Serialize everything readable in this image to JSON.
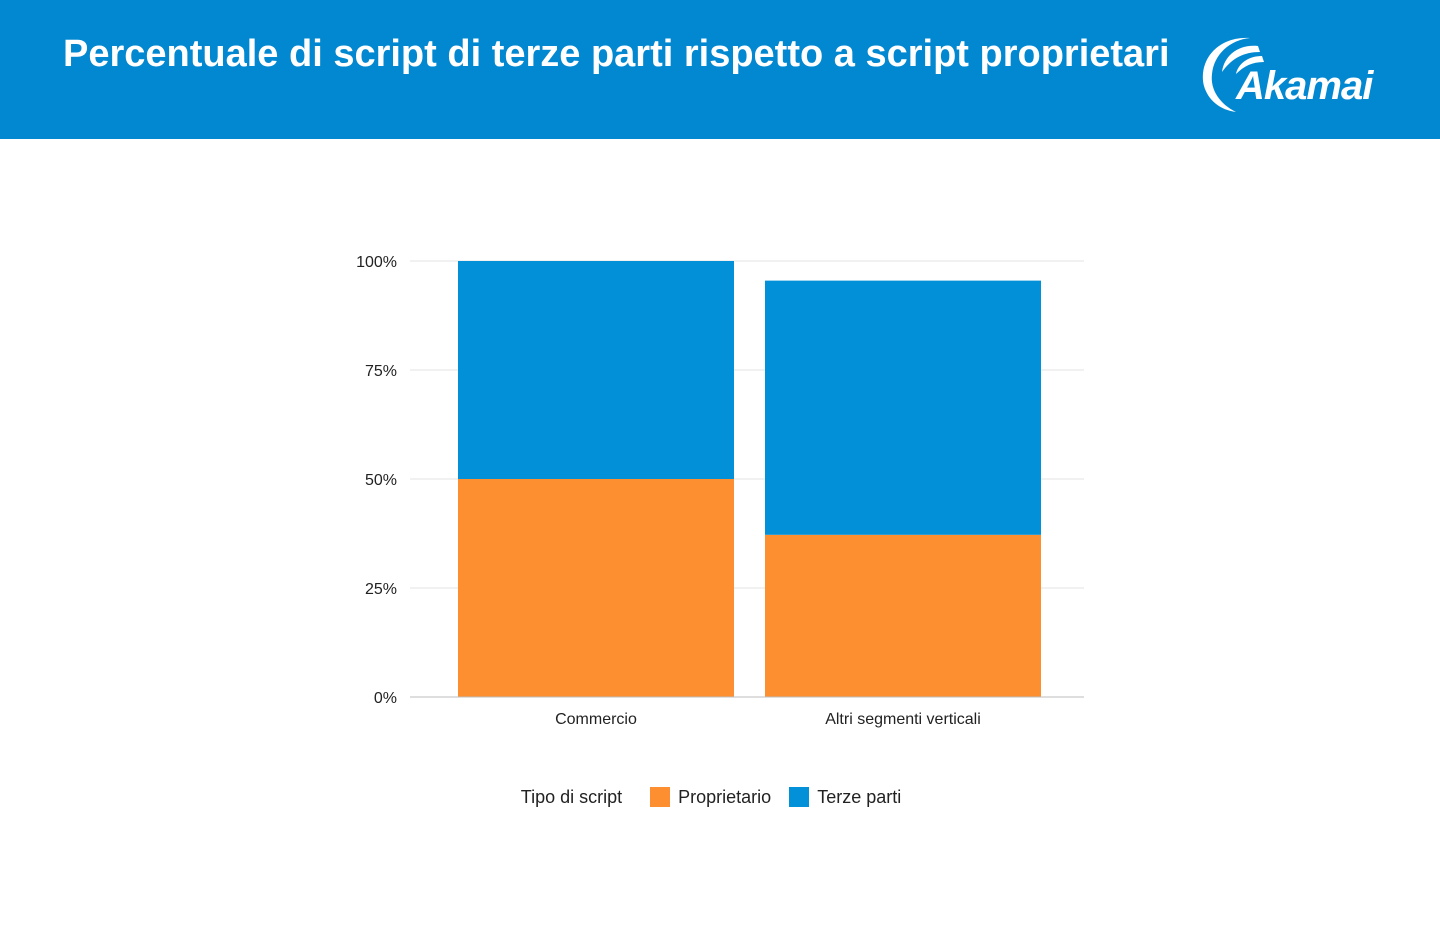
{
  "header": {
    "title": "Percentuale di script di terze parti rispetto a script proprietari",
    "logo_text": "Akamai",
    "background": "#0288d1"
  },
  "chart_data": {
    "type": "bar",
    "stacked": true,
    "categories": [
      "Commercio",
      "Altri segmenti verticali"
    ],
    "series": [
      {
        "name": "Proprietario",
        "color": "#fd8f30",
        "values": [
          50,
          37.2
        ]
      },
      {
        "name": "Terze parti",
        "color": "#0290d8",
        "values": [
          50,
          58.3
        ]
      }
    ],
    "ylim": [
      0,
      100
    ],
    "yticks": [
      0,
      25,
      50,
      75,
      100
    ],
    "ytick_labels": [
      "0%",
      "25%",
      "50%",
      "75%",
      "100%"
    ],
    "legend": {
      "title": "Tipo di script",
      "placement": "bottom"
    },
    "grid": true
  }
}
